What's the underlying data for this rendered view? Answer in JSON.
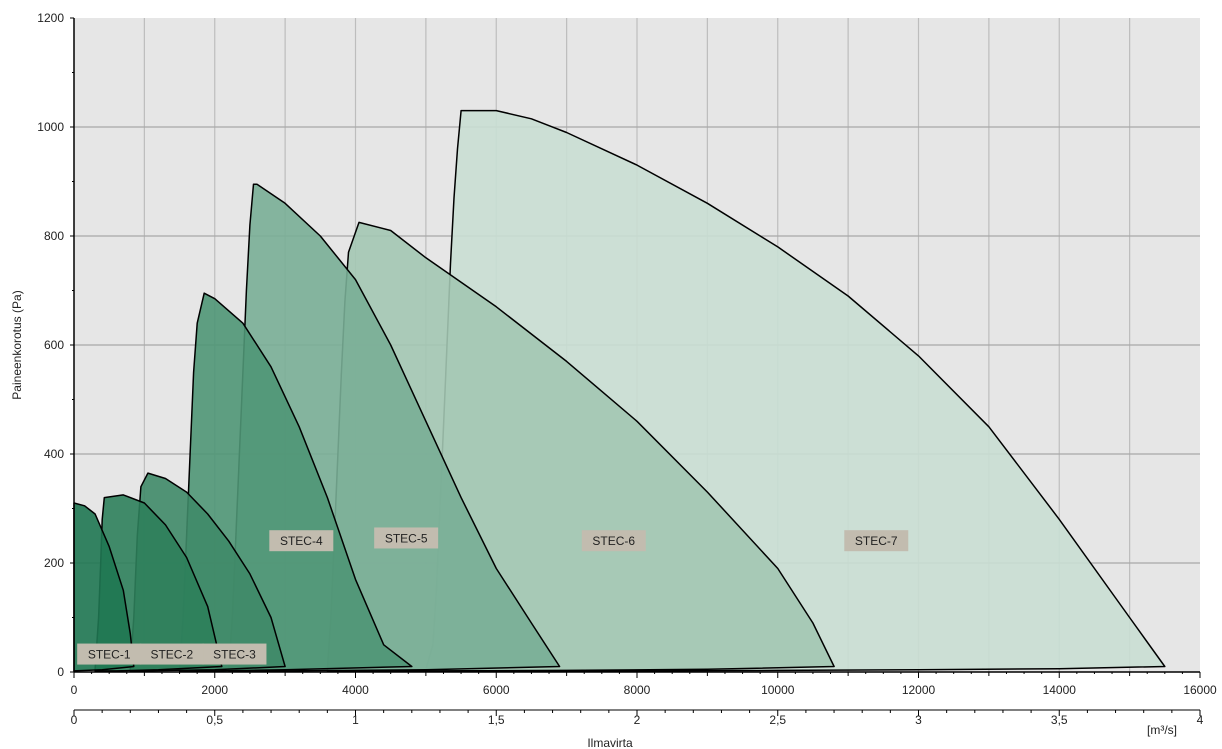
{
  "chart_data": {
    "type": "area",
    "title": "",
    "xlabel": "Ilmavirta",
    "ylabel": "Paineenkorotus (Pa)",
    "x_unit_secondary": "[m³/s]",
    "xlim": [
      0,
      16000
    ],
    "ylim": [
      0,
      1200
    ],
    "x_ticks": [
      0,
      2000,
      4000,
      6000,
      8000,
      10000,
      12000,
      14000,
      16000
    ],
    "x_tick_labels": [
      "0",
      "2000",
      "4000",
      "6000",
      "8000",
      "10000",
      "12000",
      "14000",
      "16000"
    ],
    "x2_ticks": [
      0,
      0.5,
      1,
      1.5,
      2,
      2.5,
      3,
      3.5,
      4
    ],
    "x2_tick_labels": [
      "0",
      "0,5",
      "1",
      "1,5",
      "2",
      "2,5",
      "3",
      "3,5",
      "4"
    ],
    "y_ticks": [
      0,
      200,
      400,
      600,
      800,
      1000,
      1200
    ],
    "grid": true,
    "series": [
      {
        "name": "STEC-7",
        "color": "#c9ded3",
        "label_at": [
          11400,
          240
        ],
        "points": [
          [
            5000,
            5
          ],
          [
            5100,
            50
          ],
          [
            5150,
            150
          ],
          [
            5200,
            300
          ],
          [
            5250,
            450
          ],
          [
            5300,
            600
          ],
          [
            5350,
            750
          ],
          [
            5400,
            870
          ],
          [
            5450,
            960
          ],
          [
            5500,
            1030
          ],
          [
            6000,
            1030
          ],
          [
            6500,
            1015
          ],
          [
            7000,
            990
          ],
          [
            8000,
            930
          ],
          [
            9000,
            860
          ],
          [
            10000,
            780
          ],
          [
            11000,
            690
          ],
          [
            12000,
            580
          ],
          [
            13000,
            450
          ],
          [
            14000,
            280
          ],
          [
            15000,
            100
          ],
          [
            15500,
            10
          ],
          [
            14000,
            6
          ],
          [
            12000,
            4
          ],
          [
            10000,
            3
          ],
          [
            8000,
            2
          ],
          [
            6000,
            2
          ],
          [
            5000,
            2
          ]
        ]
      },
      {
        "name": "STEC-6",
        "color": "#a3c7b3",
        "label_at": [
          7670,
          240
        ],
        "points": [
          [
            3600,
            5
          ],
          [
            3650,
            100
          ],
          [
            3700,
            250
          ],
          [
            3750,
            400
          ],
          [
            3800,
            550
          ],
          [
            3850,
            680
          ],
          [
            3900,
            770
          ],
          [
            4050,
            825
          ],
          [
            4500,
            810
          ],
          [
            5000,
            760
          ],
          [
            6000,
            670
          ],
          [
            7000,
            570
          ],
          [
            8000,
            460
          ],
          [
            9000,
            330
          ],
          [
            10000,
            190
          ],
          [
            10500,
            90
          ],
          [
            10800,
            10
          ],
          [
            9000,
            5
          ],
          [
            7000,
            3
          ],
          [
            5000,
            2
          ],
          [
            3600,
            2
          ]
        ]
      },
      {
        "name": "STEC-5",
        "color": "#79ae96",
        "label_at": [
          4720,
          245
        ],
        "points": [
          [
            2200,
            5
          ],
          [
            2250,
            100
          ],
          [
            2300,
            250
          ],
          [
            2350,
            400
          ],
          [
            2400,
            550
          ],
          [
            2450,
            700
          ],
          [
            2500,
            820
          ],
          [
            2550,
            895
          ],
          [
            2600,
            895
          ],
          [
            3000,
            860
          ],
          [
            3500,
            800
          ],
          [
            4000,
            720
          ],
          [
            4500,
            600
          ],
          [
            5000,
            460
          ],
          [
            5500,
            320
          ],
          [
            6000,
            190
          ],
          [
            6500,
            90
          ],
          [
            6900,
            10
          ],
          [
            5000,
            4
          ],
          [
            3000,
            2
          ],
          [
            2200,
            2
          ]
        ]
      },
      {
        "name": "STEC-4",
        "color": "#4f9676",
        "label_at": [
          3230,
          240
        ],
        "points": [
          [
            1500,
            5
          ],
          [
            1550,
            100
          ],
          [
            1600,
            250
          ],
          [
            1650,
            400
          ],
          [
            1700,
            550
          ],
          [
            1750,
            640
          ],
          [
            1850,
            695
          ],
          [
            2000,
            685
          ],
          [
            2400,
            640
          ],
          [
            2800,
            560
          ],
          [
            3200,
            450
          ],
          [
            3600,
            320
          ],
          [
            4000,
            170
          ],
          [
            4400,
            50
          ],
          [
            4800,
            10
          ],
          [
            3000,
            4
          ],
          [
            2000,
            2
          ],
          [
            1500,
            2
          ]
        ]
      },
      {
        "name": "STEC-3",
        "color": "#3f8a68",
        "label_at": [
          2280,
          32
        ],
        "points": [
          [
            800,
            5
          ],
          [
            850,
            100
          ],
          [
            900,
            250
          ],
          [
            950,
            340
          ],
          [
            1050,
            365
          ],
          [
            1300,
            355
          ],
          [
            1600,
            330
          ],
          [
            1900,
            290
          ],
          [
            2200,
            240
          ],
          [
            2500,
            180
          ],
          [
            2800,
            100
          ],
          [
            3000,
            10
          ],
          [
            2000,
            4
          ],
          [
            1000,
            2
          ],
          [
            800,
            2
          ]
        ]
      },
      {
        "name": "STEC-2",
        "color": "#2e7f5b",
        "label_at": [
          1390,
          32
        ],
        "points": [
          [
            300,
            5
          ],
          [
            350,
            100
          ],
          [
            380,
            200
          ],
          [
            400,
            280
          ],
          [
            430,
            320
          ],
          [
            700,
            325
          ],
          [
            1000,
            310
          ],
          [
            1300,
            270
          ],
          [
            1600,
            210
          ],
          [
            1900,
            120
          ],
          [
            2100,
            10
          ],
          [
            1200,
            4
          ],
          [
            600,
            2
          ],
          [
            300,
            2
          ]
        ]
      },
      {
        "name": "STEC-1",
        "color": "#1f7752",
        "label_at": [
          500,
          32
        ],
        "points": [
          [
            0,
            5
          ],
          [
            0,
            310
          ],
          [
            150,
            305
          ],
          [
            300,
            290
          ],
          [
            500,
            230
          ],
          [
            700,
            150
          ],
          [
            800,
            70
          ],
          [
            850,
            10
          ],
          [
            400,
            4
          ],
          [
            0,
            2
          ]
        ]
      }
    ]
  }
}
